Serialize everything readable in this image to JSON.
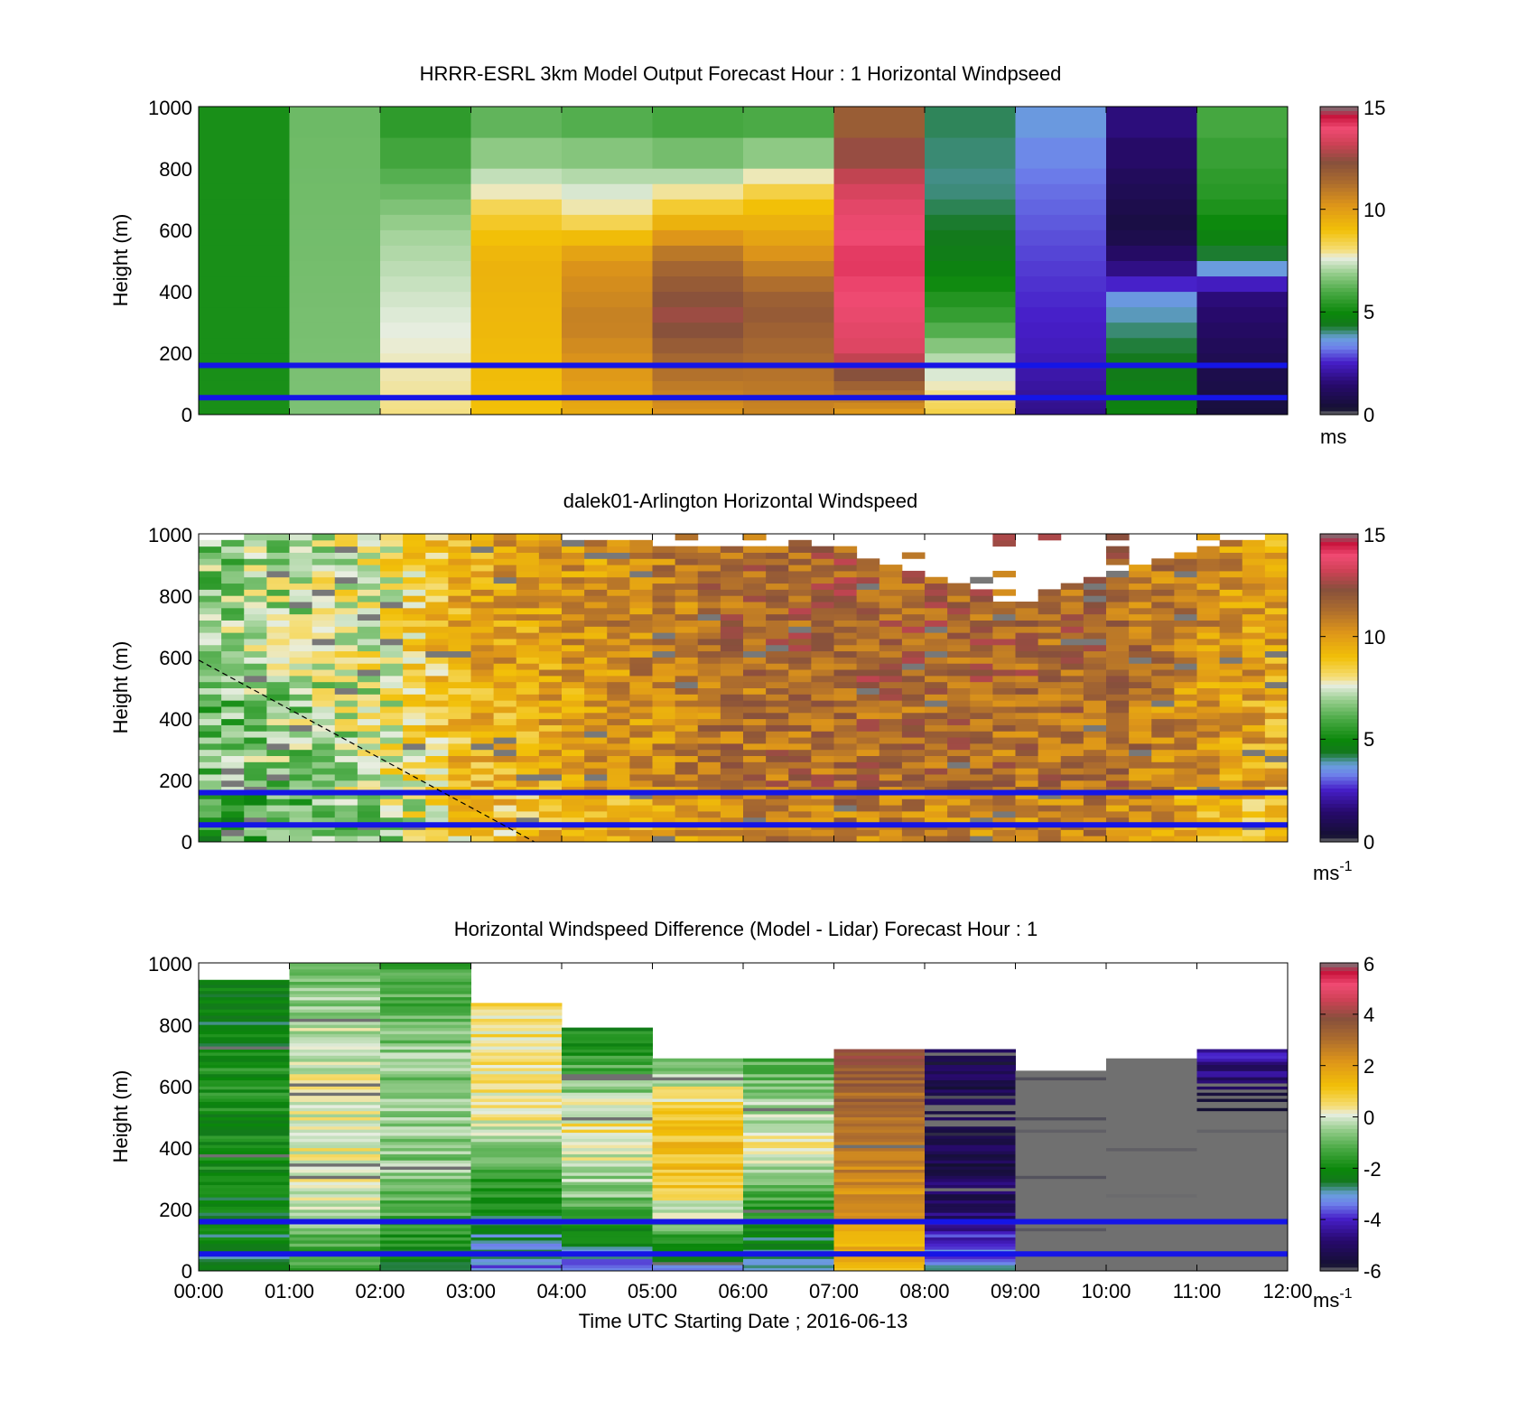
{
  "chart_data": [
    {
      "type": "heatmap",
      "id": "model",
      "title": "HRRR-ESRL 3km Model Output   Forecast Hour : 1 Horizontal Windpseed",
      "ylabel": "Height (m)",
      "ylim": [
        0,
        1000
      ],
      "yticks": [
        "0",
        "200",
        "400",
        "600",
        "800",
        "1000"
      ],
      "x_range_hours": [
        0,
        12
      ],
      "colorbar": {
        "min": 0,
        "max": 15,
        "ticks": [
          "0",
          "5",
          "10",
          "15"
        ],
        "unit": "ms",
        "unit_sup": ""
      },
      "reference_lines_m": [
        160,
        55
      ],
      "reference_line_color": "#1515e6",
      "columns": [
        {
          "hour_start": 0,
          "profile": [
            [
              0,
              5.2
            ],
            [
              1000,
              5.2
            ]
          ]
        },
        {
          "hour_start": 1,
          "profile": [
            [
              0,
              6.6
            ],
            [
              1000,
              6.4
            ]
          ]
        },
        {
          "hour_start": 2,
          "profile": [
            [
              0,
              8
            ],
            [
              300,
              7.6
            ],
            [
              600,
              7
            ],
            [
              800,
              6
            ],
            [
              1000,
              5.4
            ]
          ]
        },
        {
          "hour_start": 3,
          "profile": [
            [
              0,
              9
            ],
            [
              500,
              9.4
            ],
            [
              650,
              8.6
            ],
            [
              760,
              7.4
            ],
            [
              850,
              6.8
            ],
            [
              1000,
              6
            ]
          ]
        },
        {
          "hour_start": 4,
          "profile": [
            [
              0,
              9.6
            ],
            [
              300,
              10.8
            ],
            [
              500,
              10.2
            ],
            [
              650,
              8
            ],
            [
              800,
              7
            ],
            [
              1000,
              5.8
            ]
          ]
        },
        {
          "hour_start": 5,
          "profile": [
            [
              0,
              10.2
            ],
            [
              320,
              12.6
            ],
            [
              500,
              11.4
            ],
            [
              650,
              9
            ],
            [
              800,
              6.8
            ],
            [
              1000,
              5.6
            ]
          ]
        },
        {
          "hour_start": 6,
          "profile": [
            [
              0,
              10.6
            ],
            [
              350,
              12
            ],
            [
              550,
              10
            ],
            [
              700,
              8.8
            ],
            [
              850,
              6.8
            ],
            [
              1000,
              5.6
            ]
          ]
        },
        {
          "hour_start": 7,
          "profile": [
            [
              0,
              10
            ],
            [
              200,
              13.5
            ],
            [
              500,
              14.2
            ],
            [
              700,
              13.6
            ],
            [
              850,
              12.5
            ],
            [
              1000,
              11.5
            ]
          ]
        },
        {
          "hour_start": 8,
          "profile": [
            [
              0,
              8.5
            ],
            [
              200,
              7
            ],
            [
              300,
              5.8
            ],
            [
              500,
              4.6
            ],
            [
              750,
              4
            ],
            [
              1000,
              4.2
            ]
          ]
        },
        {
          "hour_start": 9,
          "profile": [
            [
              0,
              1.8
            ],
            [
              200,
              2.4
            ],
            [
              500,
              2.8
            ],
            [
              750,
              3.2
            ],
            [
              900,
              3.5
            ],
            [
              1000,
              3.8
            ]
          ]
        },
        {
          "hour_start": 10,
          "profile": [
            [
              0,
              4.8
            ],
            [
              250,
              4.2
            ],
            [
              380,
              3.6
            ],
            [
              450,
              2
            ],
            [
              600,
              0.6
            ],
            [
              800,
              1.2
            ],
            [
              1000,
              1.8
            ]
          ]
        },
        {
          "hour_start": 11,
          "profile": [
            [
              0,
              0.5
            ],
            [
              200,
              1
            ],
            [
              400,
              1.7
            ],
            [
              460,
              3.5
            ],
            [
              550,
              4.6
            ],
            [
              700,
              5.4
            ],
            [
              1000,
              6
            ]
          ]
        }
      ]
    },
    {
      "type": "heatmap",
      "id": "lidar",
      "title": "dalek01-Arlington  Horizontal Windspeed",
      "ylabel": "Height (m)",
      "ylim": [
        0,
        1000
      ],
      "yticks": [
        "0",
        "200",
        "400",
        "600",
        "800",
        "1000"
      ],
      "x_range_hours": [
        0,
        12
      ],
      "colorbar": {
        "min": 0,
        "max": 15,
        "ticks": [
          "0",
          "5",
          "10",
          "15"
        ],
        "unit": "ms",
        "unit_sup": "-1"
      },
      "reference_lines_m": [
        160,
        55
      ],
      "reference_line_color": "#1515e6",
      "dashed_line_hours_m": [
        [
          0,
          590
        ],
        [
          3.7,
          0
        ]
      ],
      "profiles": [
        {
          "hour": 0,
          "value": 6.2,
          "top_m": 970
        },
        {
          "hour": 1,
          "value": 6.8,
          "top_m": 990
        },
        {
          "hour": 2,
          "value": 7.5,
          "top_m": 1000
        },
        {
          "hour": 3,
          "value": 9.4,
          "top_m": 1000
        },
        {
          "hour": 4,
          "value": 9.8,
          "top_m": 980
        },
        {
          "hour": 5,
          "value": 10.4,
          "top_m": 950
        },
        {
          "hour": 6,
          "value": 11.2,
          "top_m": 960
        },
        {
          "hour": 7,
          "value": 11.5,
          "top_m": 930
        },
        {
          "hour": 8,
          "value": 11.4,
          "top_m": 870
        },
        {
          "hour": 9,
          "value": 11.2,
          "top_m": 760
        },
        {
          "hour": 10,
          "value": 11.4,
          "top_m": 870
        },
        {
          "hour": 11,
          "value": 10.2,
          "top_m": 940
        },
        {
          "hour": 12,
          "value": 9.5,
          "top_m": 990
        }
      ]
    },
    {
      "type": "heatmap",
      "id": "difference",
      "title": "Horizontal Windspeed Difference (Model - Lidar) Forecast Hour : 1",
      "ylabel": "Height (m)",
      "xlabel": "Time UTC  Starting Date ; 2016-06-13",
      "ylim": [
        0,
        1000
      ],
      "yticks": [
        "0",
        "200",
        "400",
        "600",
        "800",
        "1000"
      ],
      "xticks": [
        "00:00",
        "01:00",
        "02:00",
        "03:00",
        "04:00",
        "05:00",
        "06:00",
        "07:00",
        "08:00",
        "09:00",
        "10:00",
        "11:00",
        "12:00"
      ],
      "x_range_hours": [
        0,
        12
      ],
      "colorbar": {
        "min": -6,
        "max": 6,
        "ticks": [
          "-6",
          "-4",
          "-2",
          "0",
          "2",
          "4",
          "6"
        ],
        "unit": "ms",
        "unit_sup": "-1"
      },
      "reference_lines_m": [
        160,
        55
      ],
      "reference_line_color": "#1515e6",
      "columns": [
        {
          "hour_start": 0,
          "top_m": 945,
          "profile": [
            [
              0,
              -2.6
            ],
            [
              300,
              -2
            ],
            [
              600,
              -1.8
            ],
            [
              900,
              -2.4
            ]
          ]
        },
        {
          "hour_start": 1,
          "top_m": 1000,
          "profile": [
            [
              0,
              -1.6
            ],
            [
              300,
              0.2
            ],
            [
              600,
              0.1
            ],
            [
              1000,
              -0.8
            ]
          ]
        },
        {
          "hour_start": 2,
          "top_m": 1000,
          "profile": [
            [
              0,
              -2.4
            ],
            [
              300,
              -0.6
            ],
            [
              700,
              -0.6
            ],
            [
              1000,
              -1.6
            ]
          ]
        },
        {
          "hour_start": 3,
          "top_m": 870,
          "profile": [
            [
              0,
              -3.4
            ],
            [
              200,
              -2.2
            ],
            [
              500,
              0.2
            ],
            [
              850,
              0.6
            ]
          ]
        },
        {
          "hour_start": 4,
          "top_m": 790,
          "profile": [
            [
              0,
              -3.5
            ],
            [
              200,
              -1
            ],
            [
              450,
              0.6
            ],
            [
              750,
              -2
            ]
          ]
        },
        {
          "hour_start": 5,
          "top_m": 690,
          "profile": [
            [
              0,
              -3.4
            ],
            [
              160,
              -0.4
            ],
            [
              300,
              1.2
            ],
            [
              520,
              1
            ],
            [
              690,
              -1.2
            ]
          ]
        },
        {
          "hour_start": 6,
          "top_m": 690,
          "profile": [
            [
              0,
              -3.2
            ],
            [
              200,
              -1.5
            ],
            [
              400,
              0.4
            ],
            [
              690,
              -1.3
            ]
          ]
        },
        {
          "hour_start": 7,
          "top_m": 720,
          "profile": [
            [
              0,
              1.2
            ],
            [
              250,
              2.2
            ],
            [
              550,
              3.2
            ],
            [
              720,
              4.2
            ]
          ]
        },
        {
          "hour_start": 8,
          "top_m": 720,
          "profile": [
            [
              0,
              -3
            ],
            [
              200,
              -5
            ],
            [
              500,
              -5.6
            ],
            [
              720,
              -5.2
            ]
          ]
        },
        {
          "hour_start": 9,
          "top_m": 650,
          "profile": [
            [
              0,
              -6.5
            ],
            [
              650,
              -6.5
            ]
          ]
        },
        {
          "hour_start": 10,
          "top_m": 690,
          "profile": [
            [
              0,
              -6.5
            ],
            [
              690,
              -6.5
            ]
          ]
        },
        {
          "hour_start": 11,
          "top_m": 720,
          "profile": [
            [
              0,
              -6.5
            ],
            [
              500,
              -6.5
            ],
            [
              600,
              -5.2
            ],
            [
              720,
              -4
            ]
          ]
        }
      ]
    }
  ]
}
